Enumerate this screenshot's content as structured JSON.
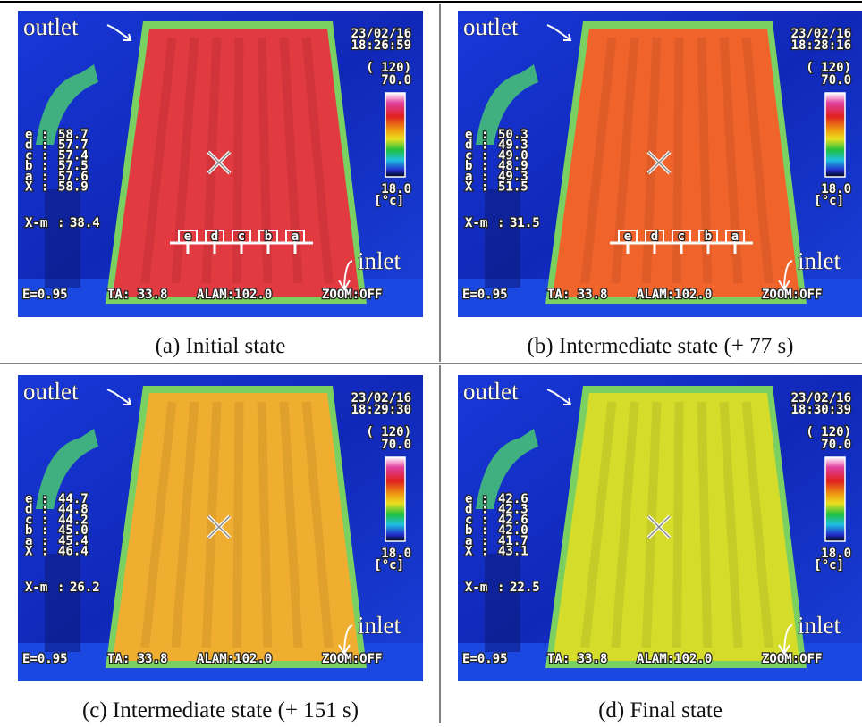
{
  "separator": ":",
  "panels": [
    {
      "caption": "(a) Initial state",
      "color": "#e13a40",
      "outlet": "outlet",
      "inlet": "inlet",
      "date": "23/02/16",
      "time": "18:26:59",
      "range": "( 120)",
      "max": "70.0",
      "min": "18.0",
      "unit": "[°c]",
      "readings": [
        [
          "e",
          "58.7"
        ],
        [
          "d",
          "57.7"
        ],
        [
          "c",
          "57.4"
        ],
        [
          "b",
          "57.5"
        ],
        [
          "a",
          "57.6"
        ],
        [
          "X",
          "58.9"
        ]
      ],
      "xm_label": "X-m",
      "xm": "38.4",
      "status": [
        "E=0.95",
        "TA: 33.8",
        "ALAM:102.0",
        "ZOOM:OFF"
      ],
      "markers": [
        "e",
        "d",
        "c",
        "b",
        "a"
      ]
    },
    {
      "caption": "(b) Intermediate state (+ 77 s)",
      "color": "#f0642c",
      "outlet": "outlet",
      "inlet": "inlet",
      "date": "23/02/16",
      "time": "18:28:16",
      "range": "( 120)",
      "max": "70.0",
      "min": "18.0",
      "unit": "[°c]",
      "readings": [
        [
          "e",
          "50.3"
        ],
        [
          "d",
          "49.3"
        ],
        [
          "c",
          "49.0"
        ],
        [
          "b",
          "48.9"
        ],
        [
          "a",
          "49.3"
        ],
        [
          "X",
          "51.5"
        ]
      ],
      "xm_label": "X-m",
      "xm": "31.5",
      "status": [
        "E=0.95",
        "TA: 33.8",
        "ALAM:102.0",
        "ZOOM:OFF"
      ],
      "markers": [
        "e",
        "d",
        "c",
        "b",
        "a"
      ]
    },
    {
      "caption": "(c) Intermediate state (+ 151 s)",
      "color": "#f0ae30",
      "outlet": "outlet",
      "inlet": "inlet",
      "date": "23/02/16",
      "time": "18:29:30",
      "range": "( 120)",
      "max": "70.0",
      "min": "18.0",
      "unit": "[°c]",
      "readings": [
        [
          "e",
          "44.7"
        ],
        [
          "d",
          "44.8"
        ],
        [
          "c",
          "44.2"
        ],
        [
          "b",
          "45.0"
        ],
        [
          "a",
          "45.4"
        ],
        [
          "X",
          "46.4"
        ]
      ],
      "xm_label": "X-m",
      "xm": "26.2",
      "status": [
        "E=0.95",
        "TA: 33.8",
        "ALAM:102.0",
        "ZOOM:OFF"
      ]
    },
    {
      "caption": "(d) Final state",
      "color": "#d6dc2a",
      "outlet": "outlet",
      "inlet": "inlet",
      "date": "23/02/16",
      "time": "18:30:39",
      "range": "( 120)",
      "max": "70.0",
      "min": "18.0",
      "unit": "[°c]",
      "readings": [
        [
          "e",
          "42.6"
        ],
        [
          "d",
          "42.3"
        ],
        [
          "c",
          "42.6"
        ],
        [
          "b",
          "42.0"
        ],
        [
          "a",
          "41.7"
        ],
        [
          "X",
          "43.1"
        ]
      ],
      "xm_label": "X-m",
      "xm": "22.5",
      "status": [
        "E=0.95",
        "TA: 33.8",
        "ALAM:102.0",
        "ZOOM:OFF"
      ]
    }
  ]
}
